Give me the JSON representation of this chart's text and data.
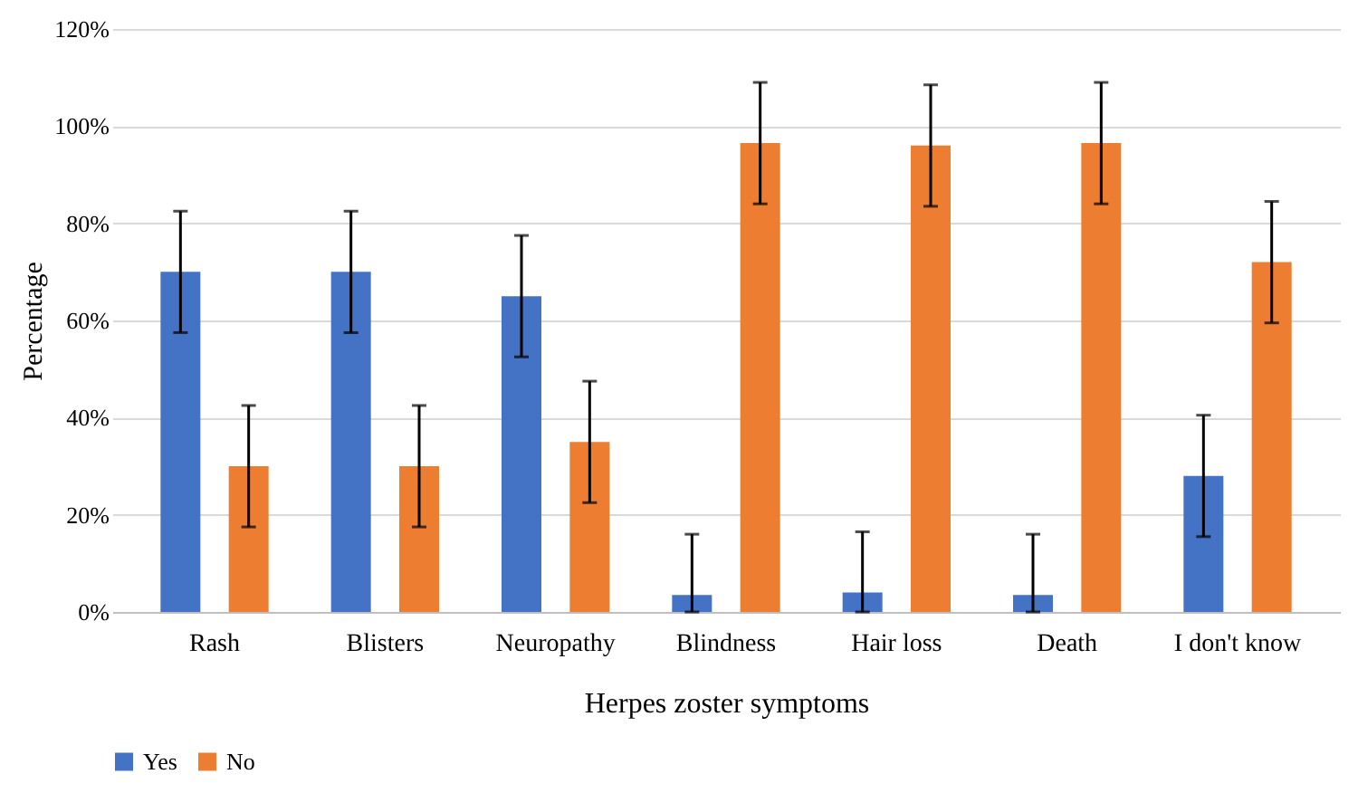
{
  "chart_data": {
    "type": "bar",
    "xlabel": "Herpes zoster symptoms",
    "ylabel": "Percentage",
    "categories": [
      "Rash",
      "Blisters",
      "Neuropathy",
      "Blindness",
      "Hair loss",
      "Death",
      "I don't know"
    ],
    "series": [
      {
        "name": "Yes",
        "color": "#4472c4",
        "values": [
          70,
          70,
          65,
          3.5,
          4,
          3.5,
          28
        ],
        "errors": [
          12.5,
          12.5,
          12.5,
          [
            0,
            16
          ],
          [
            0,
            16.5
          ],
          [
            0,
            16
          ],
          12.5
        ]
      },
      {
        "name": "No",
        "color": "#ed7d31",
        "values": [
          30,
          30,
          35,
          96.5,
          96,
          96.5,
          72
        ],
        "errors": [
          12.5,
          12.5,
          12.5,
          12.5,
          12.5,
          12.5,
          12.5
        ]
      }
    ],
    "ylim": [
      0,
      120
    ],
    "yticks": [
      {
        "value": 0,
        "label": "0%"
      },
      {
        "value": 20,
        "label": "20%"
      },
      {
        "value": 40,
        "label": "40%"
      },
      {
        "value": 60,
        "label": "60%"
      },
      {
        "value": 80,
        "label": "80%"
      },
      {
        "value": 100,
        "label": "100%"
      },
      {
        "value": 120,
        "label": "120%"
      }
    ],
    "grid": "y",
    "legend": "bottom"
  }
}
